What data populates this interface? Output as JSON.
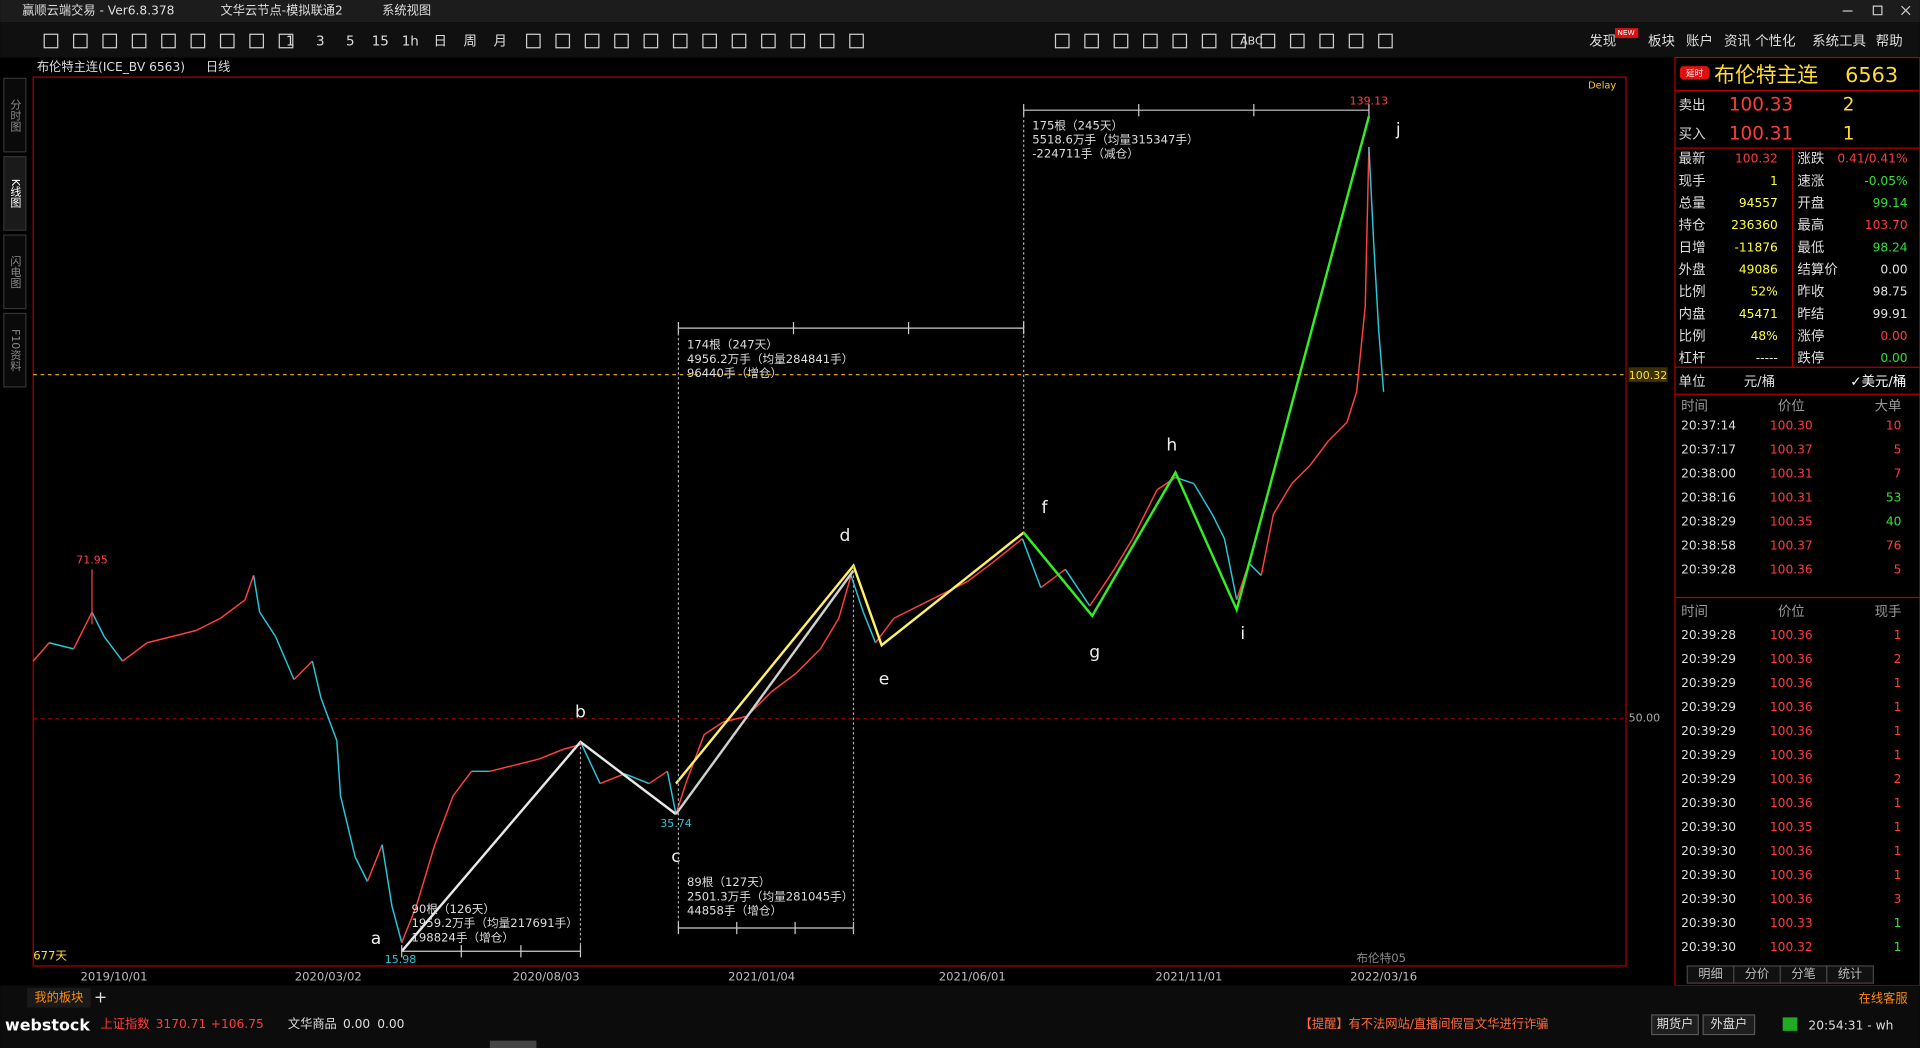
{
  "title_bar": {
    "app": "赢顺云端交易 - Ver6.8.378",
    "node": "文华云节点-模拟联通2",
    "view": "系统视图"
  },
  "toolbar": {
    "periods": [
      "1",
      "3",
      "5",
      "15",
      "1h",
      "日",
      "周",
      "月"
    ],
    "abc": "ABC",
    "menu": [
      "发现",
      "板块",
      "账户",
      "资讯",
      "个性化",
      "系统工具",
      "帮助"
    ],
    "badge": "NEW"
  },
  "side_tabs": [
    "分时图",
    "K线图",
    "闪电图",
    "F10资料"
  ],
  "chart": {
    "symbol": "布伦特主连(ICE_BV 6563)",
    "period": "日线",
    "delay": "Delay",
    "price_axis": [
      "100.32",
      "50.00"
    ],
    "x_axis": [
      "2019/10/01",
      "2020/03/02",
      "2020/08/03",
      "2021/01/04",
      "2021/06/01",
      "2021/11/01",
      "2022/03/16"
    ],
    "price_marks": [
      "71.95",
      "35.74",
      "15.98",
      "139.13"
    ],
    "waves": [
      "a",
      "b",
      "c",
      "d",
      "e",
      "f",
      "g",
      "h",
      "i",
      "j"
    ],
    "stats": [
      [
        "175根（245天）",
        "5518.6万手（均量315347手）",
        "-224711手（减仓）"
      ],
      [
        "174根（247天）",
        "4956.2万手（均量284841手）",
        "96440手（增仓）"
      ],
      [
        "89根（127天）",
        "2501.3万手（均量281045手）",
        "44858手（增仓）"
      ],
      [
        "90根（126天）",
        "1959.2万手（均量217691手）",
        "198824手（增仓）"
      ]
    ],
    "span": "677天",
    "contract": "布伦特05"
  },
  "quote": {
    "tag": "延时",
    "name": "布伦特主连",
    "code": "6563",
    "ask": {
      "label": "卖出",
      "price": "100.33",
      "qty": "2"
    },
    "bid": {
      "label": "买入",
      "price": "100.31",
      "qty": "1"
    },
    "rows": [
      [
        {
          "label": "最新",
          "value": "100.32",
          "color": "#ff3b3b"
        },
        {
          "label": "涨跌",
          "value": "0.41/0.41%",
          "color": "#ff3b3b"
        }
      ],
      [
        {
          "label": "现手",
          "value": "1",
          "color": "#ffff3c"
        },
        {
          "label": "速涨",
          "value": "-0.05%",
          "color": "#33e033"
        }
      ],
      [
        {
          "label": "总量",
          "value": "94557",
          "color": "#ffff3c"
        },
        {
          "label": "开盘",
          "value": "99.14",
          "color": "#33e033"
        }
      ],
      [
        {
          "label": "持仓",
          "value": "236360",
          "color": "#ffff3c"
        },
        {
          "label": "最高",
          "value": "103.70",
          "color": "#ff3b3b"
        }
      ],
      [
        {
          "label": "日增",
          "value": "-11876",
          "color": "#ffff3c"
        },
        {
          "label": "最低",
          "value": "98.24",
          "color": "#33e033"
        }
      ],
      [
        {
          "label": "外盘",
          "value": "49086",
          "color": "#ffff3c"
        },
        {
          "label": "结算价",
          "value": "0.00",
          "color": "#e0e0e0"
        }
      ],
      [
        {
          "label": "比例",
          "value": "52%",
          "color": "#ffff3c"
        },
        {
          "label": "昨收",
          "value": "98.75",
          "color": "#e0e0e0"
        }
      ],
      [
        {
          "label": "内盘",
          "value": "45471",
          "color": "#ffff3c"
        },
        {
          "label": "昨结",
          "value": "99.91",
          "color": "#e0e0e0"
        }
      ],
      [
        {
          "label": "比例",
          "value": "48%",
          "color": "#ffff3c"
        },
        {
          "label": "涨停",
          "value": "0.00",
          "color": "#ff3b3b"
        }
      ],
      [
        {
          "label": "杠杆",
          "value": "-----",
          "color": "#e0e0e0"
        },
        {
          "label": "跌停",
          "value": "0.00",
          "color": "#33e033"
        }
      ]
    ],
    "unit": {
      "label": "单位",
      "a": "元/桶",
      "b": "✓美元/桶"
    }
  },
  "big_trades": {
    "header": [
      "时间",
      "价位",
      "大单"
    ],
    "rows": [
      [
        {
          "v": "20:37:14"
        },
        {
          "v": "100.30"
        },
        {
          "v": "10",
          "color": "#ff3b3b"
        }
      ],
      [
        {
          "v": "20:37:17"
        },
        {
          "v": "100.37"
        },
        {
          "v": "5",
          "color": "#ff3b3b"
        }
      ],
      [
        {
          "v": "20:38:00"
        },
        {
          "v": "100.31"
        },
        {
          "v": "7",
          "color": "#ff3b3b"
        }
      ],
      [
        {
          "v": "20:38:16"
        },
        {
          "v": "100.31"
        },
        {
          "v": "53",
          "color": "#33e033"
        }
      ],
      [
        {
          "v": "20:38:29"
        },
        {
          "v": "100.35"
        },
        {
          "v": "40",
          "color": "#33e033"
        }
      ],
      [
        {
          "v": "20:38:58"
        },
        {
          "v": "100.37"
        },
        {
          "v": "76",
          "color": "#ff3b3b"
        }
      ],
      [
        {
          "v": "20:39:28"
        },
        {
          "v": "100.36"
        },
        {
          "v": "5",
          "color": "#ff3b3b"
        }
      ]
    ]
  },
  "ticks": {
    "header": [
      "时间",
      "价位",
      "现手"
    ],
    "rows": [
      [
        {
          "v": "20:39:28"
        },
        {
          "v": "100.36"
        },
        {
          "v": "1",
          "color": "#ff3b3b"
        }
      ],
      [
        {
          "v": "20:39:29"
        },
        {
          "v": "100.36"
        },
        {
          "v": "2",
          "color": "#ff3b3b"
        }
      ],
      [
        {
          "v": "20:39:29"
        },
        {
          "v": "100.36"
        },
        {
          "v": "1",
          "color": "#ff3b3b"
        }
      ],
      [
        {
          "v": "20:39:29"
        },
        {
          "v": "100.36"
        },
        {
          "v": "1",
          "color": "#ff3b3b"
        }
      ],
      [
        {
          "v": "20:39:29"
        },
        {
          "v": "100.36"
        },
        {
          "v": "1",
          "color": "#ff3b3b"
        }
      ],
      [
        {
          "v": "20:39:29"
        },
        {
          "v": "100.36"
        },
        {
          "v": "1",
          "color": "#ff3b3b"
        }
      ],
      [
        {
          "v": "20:39:29"
        },
        {
          "v": "100.36"
        },
        {
          "v": "2",
          "color": "#ff3b3b"
        }
      ],
      [
        {
          "v": "20:39:30"
        },
        {
          "v": "100.36"
        },
        {
          "v": "1",
          "color": "#ff3b3b"
        }
      ],
      [
        {
          "v": "20:39:30"
        },
        {
          "v": "100.35"
        },
        {
          "v": "1",
          "color": "#ff3b3b"
        }
      ],
      [
        {
          "v": "20:39:30"
        },
        {
          "v": "100.36"
        },
        {
          "v": "1",
          "color": "#ff3b3b"
        }
      ],
      [
        {
          "v": "20:39:30"
        },
        {
          "v": "100.36"
        },
        {
          "v": "1",
          "color": "#ff3b3b"
        }
      ],
      [
        {
          "v": "20:39:30"
        },
        {
          "v": "100.36"
        },
        {
          "v": "3",
          "color": "#ff3b3b"
        }
      ],
      [
        {
          "v": "20:39:30"
        },
        {
          "v": "100.33"
        },
        {
          "v": "1",
          "color": "#33e033"
        }
      ],
      [
        {
          "v": "20:39:30"
        },
        {
          "v": "100.32"
        },
        {
          "v": "1",
          "color": "#33e033"
        }
      ]
    ]
  },
  "panel_tabs": [
    "明细",
    "分价",
    "分笔",
    "统计"
  ],
  "status": {
    "my_block": "我的板块",
    "add": "+",
    "brand": "webstock",
    "index_name": "上证指数",
    "index_value": "3170.71",
    "index_change": "+106.75",
    "wh_name": "文华商品",
    "wh_value": "0.00",
    "wh_change": "0.00",
    "notice": "【提醒】有不法网站/直播间假冒文华进行诈骗",
    "btn1": "期货户",
    "btn2": "外盘户",
    "clock": "20:54:31 - wh",
    "service": "在线客服"
  }
}
